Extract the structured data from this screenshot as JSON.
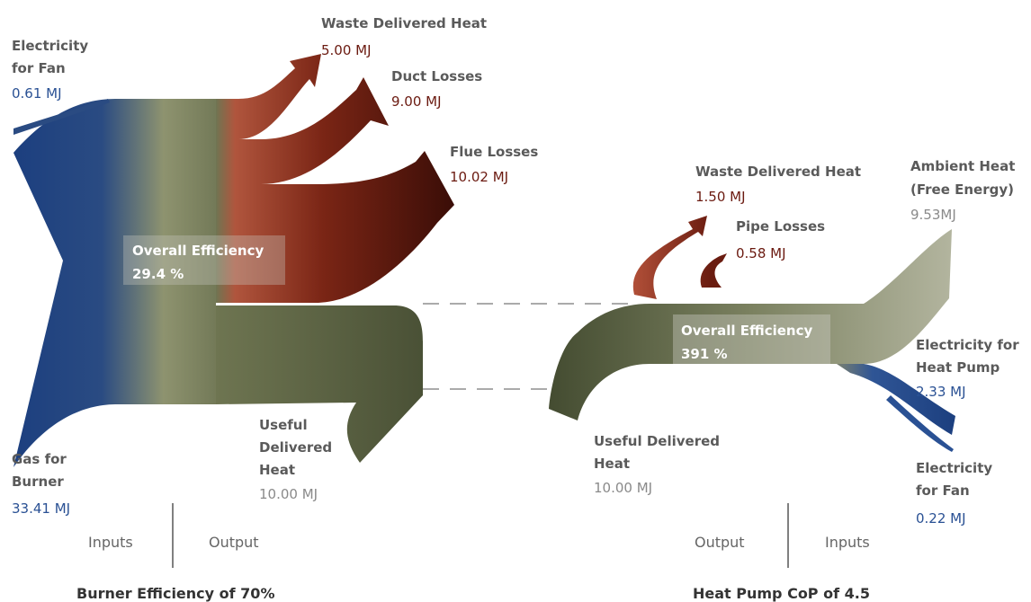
{
  "left": {
    "inputs": [
      {
        "label_lines": [
          "Electricity",
          "for Fan"
        ],
        "value": "0.61 MJ"
      },
      {
        "label_lines": [
          "Gas for",
          "Burner"
        ],
        "value": "33.41 MJ"
      }
    ],
    "outputs": [
      {
        "label_lines": [
          "Waste Delivered Heat"
        ],
        "value": "5.00 MJ"
      },
      {
        "label_lines": [
          "Duct Losses"
        ],
        "value": "9.00 MJ"
      },
      {
        "label_lines": [
          "Flue Losses"
        ],
        "value": "10.02 MJ"
      },
      {
        "label_lines": [
          "Useful",
          "Delivered",
          "Heat"
        ],
        "value": "10.00 MJ"
      }
    ],
    "efficiency": {
      "label": "Overall Efficiency",
      "value": "29.4 %"
    },
    "axis": {
      "first": "Inputs",
      "second": "Output"
    },
    "caption": "Burner Efficiency of 70%"
  },
  "right": {
    "inputs": [
      {
        "label_lines": [
          "Ambient Heat",
          "(Free Energy)"
        ],
        "value": "9.53MJ"
      },
      {
        "label_lines": [
          "Electricity for",
          "Heat Pump"
        ],
        "value": "2.33 MJ"
      },
      {
        "label_lines": [
          "Electricity",
          "for Fan"
        ],
        "value": "0.22 MJ"
      }
    ],
    "outputs": [
      {
        "label_lines": [
          "Waste Delivered Heat"
        ],
        "value": "1.50 MJ"
      },
      {
        "label_lines": [
          "Pipe Losses"
        ],
        "value": "0.58 MJ"
      },
      {
        "label_lines": [
          "Useful Delivered",
          "Heat"
        ],
        "value": "10.00 MJ"
      }
    ],
    "efficiency": {
      "label": "Overall Efficiency",
      "value": "391 %"
    },
    "axis": {
      "first": "Output",
      "second": "Inputs"
    },
    "caption": "Heat Pump CoP of 4.5"
  }
}
